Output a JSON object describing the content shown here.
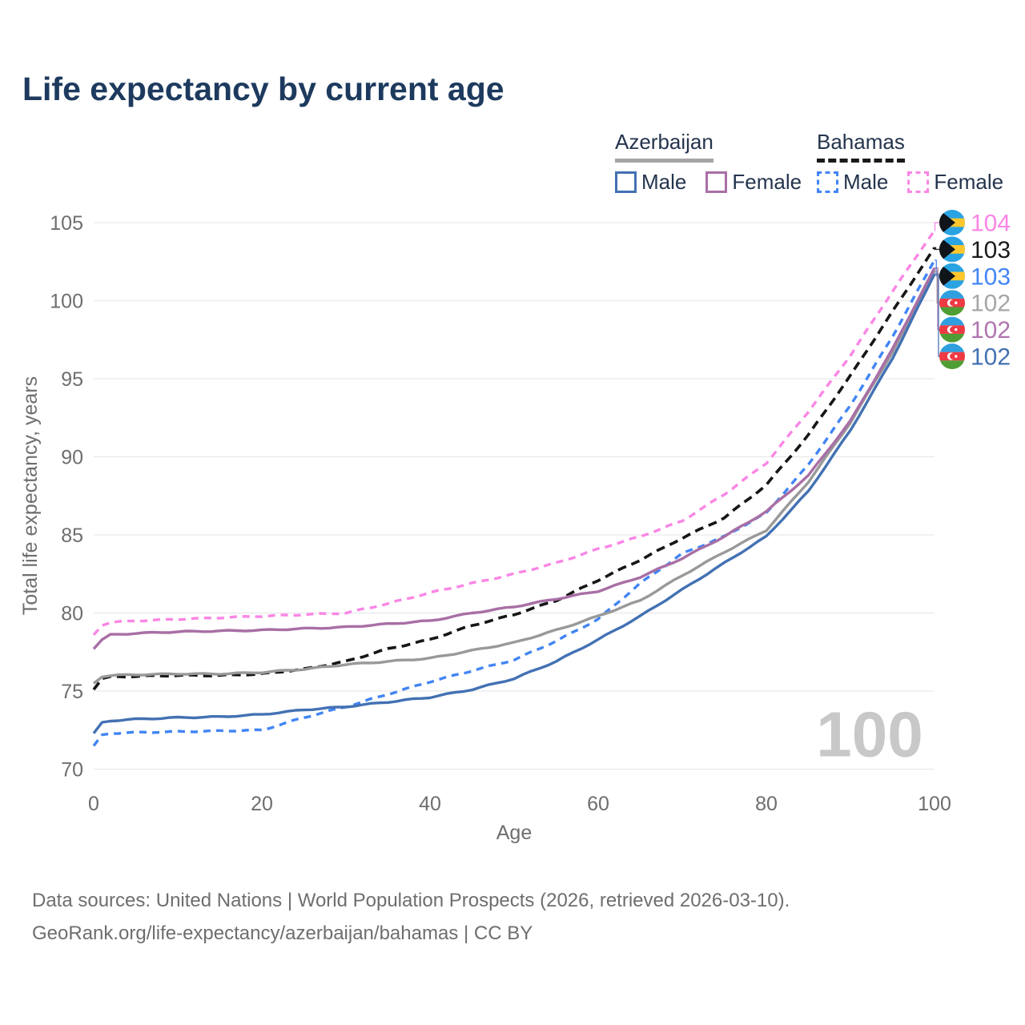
{
  "title": "Life expectancy by current age",
  "watermark": "100",
  "legend": {
    "countries": [
      {
        "name": "Azerbaijan",
        "line_style": "solid",
        "underline_color": "#a5a5a5"
      },
      {
        "name": "Bahamas",
        "line_style": "dashed",
        "underline_color": "#1a1a1a"
      }
    ],
    "entries": [
      {
        "group": 0,
        "label": "Male",
        "color": "#4371b3",
        "dashed": false
      },
      {
        "group": 0,
        "label": "Female",
        "color": "#a86fa5",
        "dashed": false
      },
      {
        "group": 1,
        "label": "Male",
        "color": "#4285f4",
        "dashed": true
      },
      {
        "group": 1,
        "label": "Female",
        "color": "#fa86e5",
        "dashed": true
      }
    ]
  },
  "chart_data": {
    "type": "line",
    "title": "Life expectancy by current age",
    "xlabel": "Age",
    "ylabel": "Total life expectancy, years",
    "xlim": [
      0,
      100
    ],
    "ylim": [
      70,
      105
    ],
    "x_ticks": [
      0,
      20,
      40,
      60,
      80,
      100
    ],
    "y_ticks": [
      70,
      75,
      80,
      85,
      90,
      95,
      100,
      105
    ],
    "grid": "horizontal",
    "legend_position": "top-right",
    "x": [
      0,
      1,
      2,
      5,
      10,
      15,
      20,
      25,
      30,
      35,
      40,
      45,
      50,
      55,
      60,
      65,
      70,
      75,
      80,
      85,
      90,
      95,
      100
    ],
    "series": [
      {
        "name": "Bahamas Female",
        "country": "Bahamas",
        "flag": "bahamas",
        "color": "#fa86e5",
        "dashed": true,
        "dash": "9 7",
        "width": 3.4,
        "values": [
          78.6,
          79.2,
          79.4,
          79.5,
          79.6,
          79.7,
          79.8,
          79.9,
          80.0,
          80.6,
          81.3,
          81.9,
          82.5,
          83.2,
          84.1,
          84.9,
          85.9,
          87.6,
          89.6,
          92.9,
          96.5,
          100.6,
          104.5
        ],
        "end_label": {
          "text": "104",
          "color": "#fa86e5"
        }
      },
      {
        "name": "Bahamas Both sexes",
        "country": "Bahamas",
        "flag": "bahamas",
        "color": "#161616",
        "dashed": true,
        "dash": "11 7",
        "width": 3.6,
        "values": [
          75.1,
          75.8,
          75.9,
          75.95,
          76.0,
          76.0,
          76.1,
          76.4,
          76.9,
          77.7,
          78.3,
          79.2,
          79.9,
          80.8,
          82.1,
          83.4,
          84.8,
          86.1,
          88.2,
          91.4,
          95.2,
          99.3,
          103.4
        ],
        "end_label": {
          "text": "103",
          "color": "#1a1a1a"
        }
      },
      {
        "name": "Bahamas Male",
        "country": "Bahamas",
        "flag": "bahamas",
        "color": "#4285f4",
        "dashed": true,
        "dash": "9 7",
        "width": 3.4,
        "values": [
          71.5,
          72.2,
          72.3,
          72.35,
          72.4,
          72.45,
          72.5,
          73.3,
          74.0,
          74.8,
          75.6,
          76.3,
          77.0,
          78.2,
          79.6,
          81.9,
          83.8,
          84.9,
          86.4,
          89.5,
          93.3,
          97.7,
          102.6
        ],
        "end_label": {
          "text": "103",
          "color": "#4285f4"
        }
      },
      {
        "name": "Azerbaijan Both sexes",
        "country": "Azerbaijan",
        "flag": "azerbaijan",
        "color": "#999999",
        "dashed": false,
        "dash": "",
        "width": 3.4,
        "values": [
          75.5,
          75.9,
          76.0,
          76.05,
          76.1,
          76.1,
          76.2,
          76.4,
          76.7,
          76.9,
          77.1,
          77.6,
          78.1,
          78.9,
          79.8,
          80.8,
          82.4,
          83.9,
          85.3,
          88.4,
          92.2,
          96.7,
          101.9
        ],
        "end_label": {
          "text": "102",
          "color": "#a6a6a6"
        }
      },
      {
        "name": "Azerbaijan Female",
        "country": "Azerbaijan",
        "flag": "azerbaijan",
        "color": "#a86fa5",
        "dashed": false,
        "dash": "",
        "width": 3.4,
        "values": [
          77.7,
          78.3,
          78.6,
          78.7,
          78.8,
          78.85,
          78.9,
          79.0,
          79.1,
          79.3,
          79.5,
          80.0,
          80.4,
          80.9,
          81.4,
          82.3,
          83.5,
          84.9,
          86.5,
          88.8,
          92.3,
          96.9,
          102.1
        ],
        "end_label": {
          "text": "102",
          "color": "#af74af"
        }
      },
      {
        "name": "Azerbaijan Male",
        "country": "Azerbaijan",
        "flag": "azerbaijan",
        "color": "#4371b3",
        "dashed": false,
        "dash": "",
        "width": 3.4,
        "values": [
          72.3,
          73.0,
          73.1,
          73.2,
          73.3,
          73.35,
          73.5,
          73.8,
          74.0,
          74.3,
          74.6,
          75.1,
          75.8,
          76.9,
          78.3,
          79.8,
          81.5,
          83.2,
          84.9,
          87.8,
          91.7,
          96.3,
          101.7
        ],
        "end_label": {
          "text": "102",
          "color": "#4371b3"
        }
      }
    ]
  },
  "footer": {
    "line1": "Data sources: United Nations | World Population Prospects (2026, retrieved 2026-03-10).",
    "line2": "GeoRank.org/life-expectancy/azerbaijan/bahamas | CC BY"
  }
}
